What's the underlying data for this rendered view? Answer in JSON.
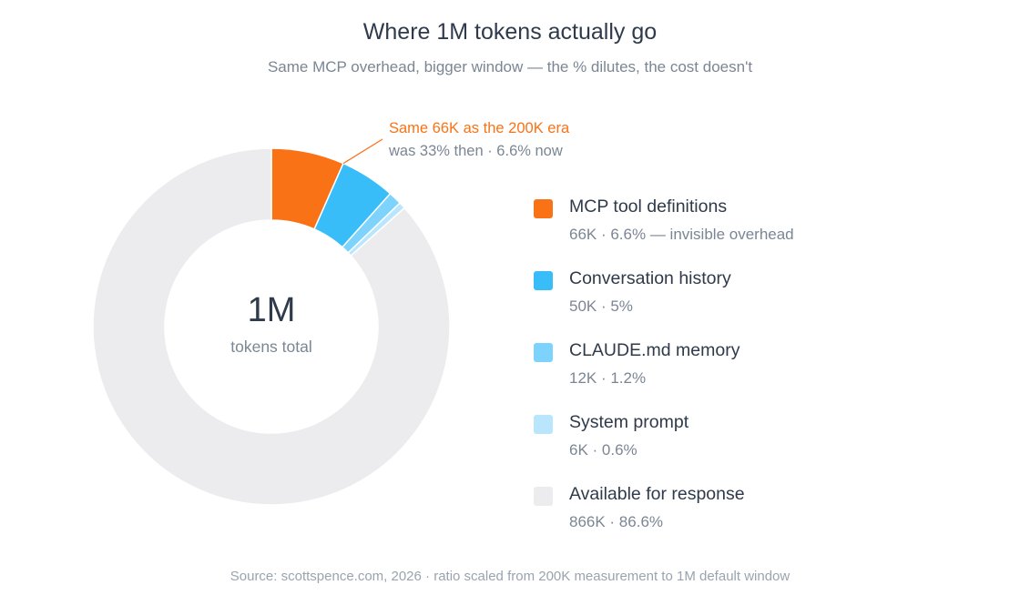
{
  "title": "Where 1M tokens actually go",
  "subtitle": "Same MCP overhead, bigger window — the % dilutes, the cost doesn't",
  "source": "Source: scottspence.com, 2026 · ratio scaled from 200K measurement to 1M default window",
  "chart_data": {
    "type": "pie",
    "variant": "donut",
    "total": 1000000,
    "center_value": "1M",
    "center_label": "tokens total",
    "slices": [
      {
        "label": "MCP tool definitions",
        "value": 66000,
        "detail": "66K · 6.6% — invisible overhead",
        "color": "#f97316"
      },
      {
        "label": "Conversation history",
        "value": 50000,
        "detail": "50K · 5%",
        "color": "#38bdf8"
      },
      {
        "label": "CLAUDE.md memory",
        "value": 12000,
        "detail": "12K · 1.2%",
        "color": "#7dd3fc"
      },
      {
        "label": "System prompt",
        "value": 6000,
        "detail": "6K · 0.6%",
        "color": "#bae6fd"
      },
      {
        "label": "Available for response",
        "value": 866000,
        "detail": "866K · 86.6%",
        "color": "#ececee"
      }
    ],
    "annotation": {
      "title": "Same 66K as the 200K era",
      "text": "was 33% then · 6.6% now",
      "color": "#f97316",
      "target": "MCP tool definitions"
    },
    "legend_position": "right"
  }
}
